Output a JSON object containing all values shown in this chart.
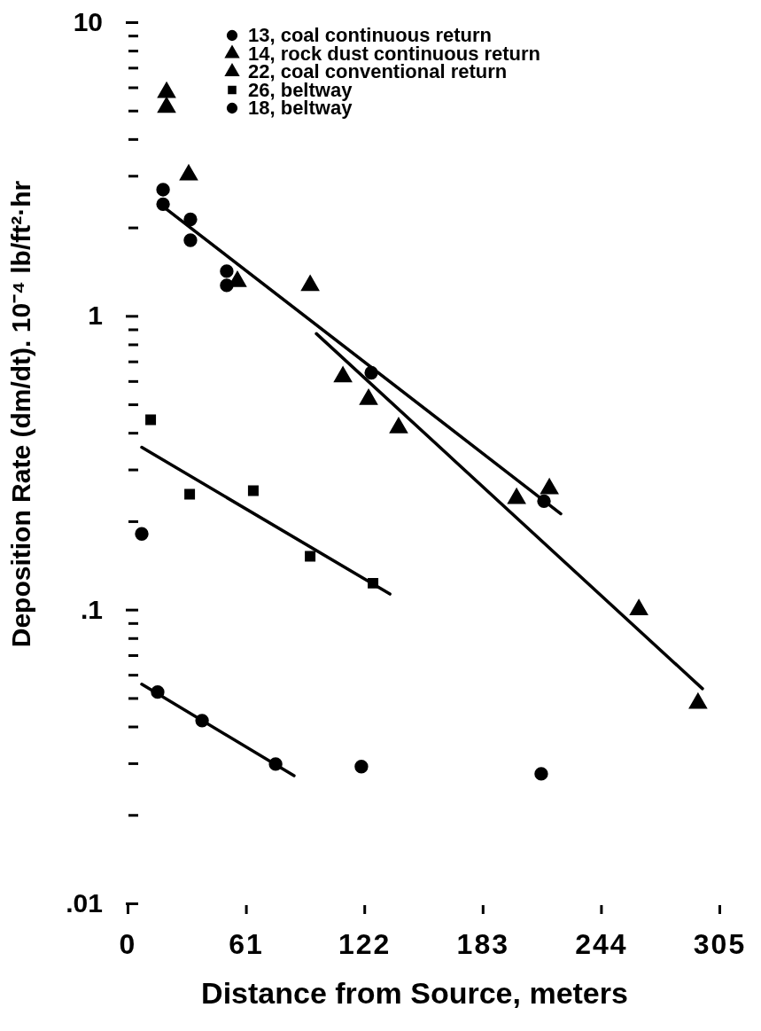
{
  "chart_data": {
    "type": "scatter",
    "xlabel": "Distance from Source, meters",
    "ylabel": "Deposition Rate (dm/dt). 10⁻⁴ lb/ft²·hr",
    "log": "y",
    "xlim": [
      0,
      305
    ],
    "xticks": [
      0,
      61,
      122,
      183,
      244,
      305
    ],
    "ylim": [
      0.01,
      10
    ],
    "yticks": [
      {
        "value": 0.01,
        "label": ".01"
      },
      {
        "value": 0.02,
        "label": null
      },
      {
        "value": 0.03,
        "label": null
      },
      {
        "value": 0.04,
        "label": null
      },
      {
        "value": 0.05,
        "label": null
      },
      {
        "value": 0.06,
        "label": null
      },
      {
        "value": 0.07,
        "label": null
      },
      {
        "value": 0.08,
        "label": null
      },
      {
        "value": 0.09,
        "label": null
      },
      {
        "value": 0.1,
        "label": ".1"
      },
      {
        "value": 0.2,
        "label": null
      },
      {
        "value": 0.3,
        "label": null
      },
      {
        "value": 0.4,
        "label": null
      },
      {
        "value": 0.5,
        "label": null
      },
      {
        "value": 0.6,
        "label": null
      },
      {
        "value": 0.7,
        "label": null
      },
      {
        "value": 0.8,
        "label": null
      },
      {
        "value": 0.9,
        "label": null
      },
      {
        "value": 1,
        "label": "1"
      },
      {
        "value": 2,
        "label": null
      },
      {
        "value": 3,
        "label": null
      },
      {
        "value": 4,
        "label": null
      },
      {
        "value": 5,
        "label": null
      },
      {
        "value": 6,
        "label": null
      },
      {
        "value": 7,
        "label": null
      },
      {
        "value": 8,
        "label": null
      },
      {
        "value": 9,
        "label": null
      },
      {
        "value": 10,
        "label": "10"
      }
    ],
    "grid": false,
    "legend": "top",
    "series": [
      {
        "name": "13, coal continuous return",
        "marker": "circle",
        "color": "#000000",
        "x": [
          18.3,
          18.3,
          32.4,
          32.4,
          51.1,
          51.1,
          125.6,
          214.6
        ],
        "values": [
          2.69,
          2.4,
          2.13,
          1.81,
          1.42,
          1.27,
          0.64,
          0.234
        ]
      },
      {
        "name": "14, rock dust continuous return",
        "marker": "triangle",
        "color": "#000000",
        "x": [
          20.1,
          20.1,
          31.5,
          56.6,
          124.2,
          217.4
        ],
        "values": [
          5.77,
          5.13,
          3.02,
          1.31,
          0.52,
          0.258
        ]
      },
      {
        "name": "22, coal conventional return",
        "marker": "triangle",
        "color": "#000000",
        "x": [
          94.1,
          111,
          139.7,
          200.5,
          263.5,
          294
        ],
        "values": [
          1.27,
          0.62,
          0.416,
          0.239,
          0.1,
          0.048
        ]
      },
      {
        "name": "26, beltway",
        "marker": "square",
        "color": "#000000",
        "x": [
          11.9,
          32,
          64.8,
          94.1,
          126.5
        ],
        "values": [
          0.443,
          0.247,
          0.254,
          0.152,
          0.123
        ]
      },
      {
        "name": "18, beltway",
        "marker": "circle",
        "color": "#000000",
        "x": [
          7.3,
          15.5,
          38.4,
          76.3,
          120.5,
          213.2
        ],
        "values": [
          0.181,
          0.0524,
          0.0419,
          0.0298,
          0.0292,
          0.0276
        ]
      },
      {
        "type": "line",
        "marker": "none",
        "line_style": "solid",
        "color": "#000000",
        "x": [
          17.8,
          223.3
        ],
        "values": [
          2.37,
          0.212
        ]
      },
      {
        "type": "line",
        "marker": "none",
        "line_style": "solid",
        "color": "#000000",
        "x": [
          97.3,
          296.3
        ],
        "values": [
          0.87,
          0.0538
        ]
      },
      {
        "type": "line",
        "marker": "none",
        "line_style": "solid",
        "color": "#000000",
        "x": [
          7.3,
          135.2
        ],
        "values": [
          0.357,
          0.113
        ]
      },
      {
        "type": "line",
        "marker": "none",
        "line_style": "solid",
        "color": "#000000",
        "x": [
          7.3,
          85.8
        ],
        "values": [
          0.0557,
          0.0272
        ]
      }
    ]
  }
}
